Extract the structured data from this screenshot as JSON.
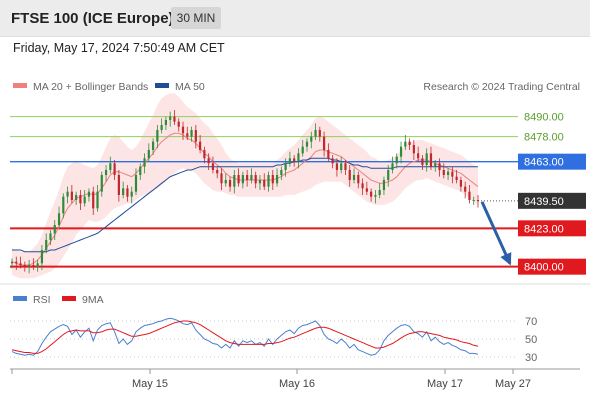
{
  "header": {
    "title": "FTSE 100 (ICE Europe)",
    "timeframe": "30 MIN"
  },
  "timestamp": "Friday, May 17, 2024 7:50:49 AM CET",
  "copyright": "Research © 2024 Trading Central",
  "colors": {
    "bollinger": "#f08080",
    "bollinger_fill": "#fde0e0",
    "ma50": "#1f4e99",
    "pivot": "#2f6fe0",
    "resistance": "#8fcf5f",
    "support": "#e0191e",
    "candle_up": "#2e8b3a",
    "candle_down": "#c0282d",
    "rsi": "#4a7fd0",
    "rsi_ma": "#e0191e",
    "arrow": "#2b5fa6"
  },
  "chart_data": [
    {
      "type": "candlestick",
      "legend": [
        "MA 20 + Bollinger Bands",
        "MA 50"
      ],
      "x_ticks": [
        "May 15",
        "May 16",
        "May 17",
        "May 27"
      ],
      "ylim": [
        8395,
        8500
      ],
      "levels": [
        {
          "value": 8490.0,
          "label": "8490.00",
          "kind": "resistance"
        },
        {
          "value": 8478.0,
          "label": "8478.00",
          "kind": "resistance"
        },
        {
          "value": 8463.0,
          "label": "8463.00",
          "kind": "pivot"
        },
        {
          "value": 8439.5,
          "label": "8439.50",
          "kind": "last"
        },
        {
          "value": 8423.0,
          "label": "8423.00",
          "kind": "support"
        },
        {
          "value": 8400.0,
          "label": "8400.00",
          "kind": "support"
        }
      ],
      "closes": [
        8403,
        8402,
        8401,
        8400,
        8401,
        8400,
        8402,
        8410,
        8416,
        8420,
        8425,
        8432,
        8442,
        8445,
        8440,
        8443,
        8438,
        8442,
        8445,
        8435,
        8445,
        8455,
        8458,
        8462,
        8455,
        8443,
        8447,
        8442,
        8445,
        8455,
        8460,
        8465,
        8470,
        8475,
        8482,
        8485,
        8488,
        8490,
        8487,
        8484,
        8480,
        8478,
        8482,
        8475,
        8470,
        8465,
        8462,
        8458,
        8456,
        8450,
        8452,
        8448,
        8455,
        8450,
        8455,
        8452,
        8455,
        8450,
        8452,
        8448,
        8455,
        8450,
        8455,
        8458,
        8462,
        8465,
        8463,
        8468,
        8472,
        8475,
        8478,
        8482,
        8478,
        8470,
        8465,
        8462,
        8458,
        8462,
        8458,
        8452,
        8455,
        8450,
        8447,
        8445,
        8442,
        8443,
        8446,
        8452,
        8458,
        8462,
        8466,
        8472,
        8475,
        8473,
        8468,
        8465,
        8461,
        8468,
        8460,
        8462,
        8458,
        8455,
        8457,
        8454,
        8452,
        8448,
        8445,
        8440,
        8440,
        8439.5
      ],
      "ma20": [
        8403,
        8402,
        8401,
        8401,
        8401,
        8402,
        8404,
        8407,
        8411,
        8415,
        8419,
        8424,
        8430,
        8435,
        8438,
        8441,
        8442,
        8443,
        8444,
        8443,
        8444,
        8447,
        8451,
        8455,
        8457,
        8457,
        8456,
        8455,
        8454,
        8456,
        8459,
        8462,
        8465,
        8468,
        8472,
        8475,
        8477,
        8479,
        8480,
        8480,
        8479,
        8477,
        8476,
        8474,
        8471,
        8468,
        8466,
        8463,
        8461,
        8459,
        8456,
        8454,
        8453,
        8452,
        8452,
        8452,
        8452,
        8452,
        8452,
        8452,
        8452,
        8452,
        8453,
        8454,
        8456,
        8457,
        8458,
        8460,
        8462,
        8464,
        8466,
        8469,
        8470,
        8470,
        8469,
        8468,
        8467,
        8466,
        8464,
        8462,
        8460,
        8458,
        8456,
        8454,
        8452,
        8451,
        8450,
        8450,
        8451,
        8452,
        8454,
        8457,
        8460,
        8462,
        8463,
        8464,
        8464,
        8464,
        8463,
        8462,
        8461,
        8460,
        8459,
        8458,
        8457,
        8456,
        8454,
        8452,
        8450,
        8448
      ],
      "ma50": [
        8410,
        8410,
        8410,
        8409,
        8409,
        8409,
        8409,
        8409,
        8409,
        8410,
        8410,
        8411,
        8412,
        8413,
        8414,
        8415,
        8416,
        8417,
        8418,
        8419,
        8420,
        8422,
        8424,
        8426,
        8428,
        8430,
        8432,
        8434,
        8436,
        8438,
        8440,
        8442,
        8444,
        8446,
        8448,
        8450,
        8452,
        8454,
        8455,
        8456,
        8457,
        8458,
        8458,
        8459,
        8460,
        8460,
        8460,
        8460,
        8460,
        8460,
        8460,
        8460,
        8460,
        8460,
        8460,
        8460,
        8460,
        8460,
        8460,
        8460,
        8460,
        8460,
        8461,
        8461,
        8462,
        8462,
        8463,
        8463,
        8464,
        8464,
        8465,
        8465,
        8465,
        8465,
        8465,
        8464,
        8464,
        8463,
        8463,
        8462,
        8461,
        8461,
        8460,
        8460,
        8459,
        8459,
        8459,
        8459,
        8459,
        8459,
        8460,
        8460,
        8460,
        8460,
        8460,
        8460,
        8460,
        8460,
        8460,
        8460,
        8460,
        8460,
        8460,
        8460,
        8460,
        8460,
        8460,
        8460,
        8460,
        8460
      ],
      "bb_width": [
        8,
        8,
        8,
        8,
        8,
        9,
        10,
        12,
        15,
        18,
        20,
        22,
        24,
        25,
        24,
        22,
        20,
        18,
        16,
        16,
        17,
        19,
        21,
        22,
        22,
        21,
        19,
        17,
        16,
        16,
        17,
        19,
        21,
        23,
        25,
        26,
        26,
        25,
        24,
        22,
        20,
        19,
        18,
        18,
        18,
        18,
        18,
        17,
        16,
        14,
        12,
        11,
        10,
        10,
        10,
        10,
        10,
        10,
        10,
        10,
        10,
        10,
        11,
        12,
        13,
        14,
        15,
        16,
        17,
        18,
        19,
        20,
        20,
        19,
        18,
        17,
        16,
        15,
        15,
        15,
        15,
        15,
        15,
        15,
        14,
        14,
        13,
        13,
        13,
        13,
        13,
        13,
        13,
        13,
        12,
        12,
        12,
        11,
        11,
        11,
        11,
        11,
        11,
        11,
        11,
        11,
        11,
        11,
        11,
        11
      ]
    },
    {
      "type": "line",
      "legend": [
        "RSI",
        "9MA"
      ],
      "ylim": [
        20,
        80
      ],
      "y_ticks": [
        70,
        50,
        30
      ],
      "rsi": [
        36,
        34,
        33,
        32,
        33,
        32,
        36,
        45,
        52,
        58,
        61,
        64,
        66,
        64,
        55,
        60,
        52,
        58,
        62,
        48,
        60,
        65,
        67,
        68,
        58,
        45,
        50,
        44,
        48,
        58,
        62,
        65,
        66,
        67,
        69,
        70,
        72,
        73,
        72,
        70,
        67,
        66,
        68,
        60,
        55,
        50,
        48,
        45,
        44,
        40,
        44,
        40,
        48,
        42,
        48,
        46,
        48,
        44,
        46,
        42,
        50,
        44,
        50,
        54,
        58,
        60,
        56,
        62,
        65,
        66,
        68,
        70,
        65,
        55,
        50,
        48,
        45,
        50,
        46,
        40,
        44,
        38,
        36,
        34,
        32,
        33,
        38,
        48,
        54,
        58,
        62,
        65,
        66,
        64,
        58,
        56,
        52,
        58,
        48,
        52,
        47,
        44,
        46,
        43,
        41,
        38,
        37,
        34,
        34,
        33
      ],
      "rsi_ma": [
        38,
        37,
        36,
        35,
        35,
        34,
        34,
        36,
        39,
        43,
        47,
        51,
        55,
        58,
        59,
        60,
        59,
        59,
        59,
        57,
        57,
        58,
        60,
        61,
        61,
        59,
        57,
        55,
        53,
        53,
        54,
        55,
        56,
        58,
        60,
        62,
        64,
        66,
        68,
        69,
        70,
        70,
        69,
        68,
        66,
        63,
        60,
        57,
        54,
        51,
        48,
        46,
        45,
        44,
        44,
        44,
        44,
        44,
        44,
        44,
        45,
        45,
        46,
        47,
        49,
        51,
        52,
        54,
        56,
        58,
        60,
        62,
        63,
        63,
        62,
        60,
        58,
        56,
        54,
        52,
        50,
        48,
        46,
        44,
        42,
        40,
        40,
        41,
        43,
        45,
        48,
        51,
        54,
        56,
        57,
        58,
        58,
        57,
        56,
        55,
        54,
        52,
        51,
        50,
        49,
        47,
        46,
        45,
        43,
        42
      ]
    }
  ]
}
